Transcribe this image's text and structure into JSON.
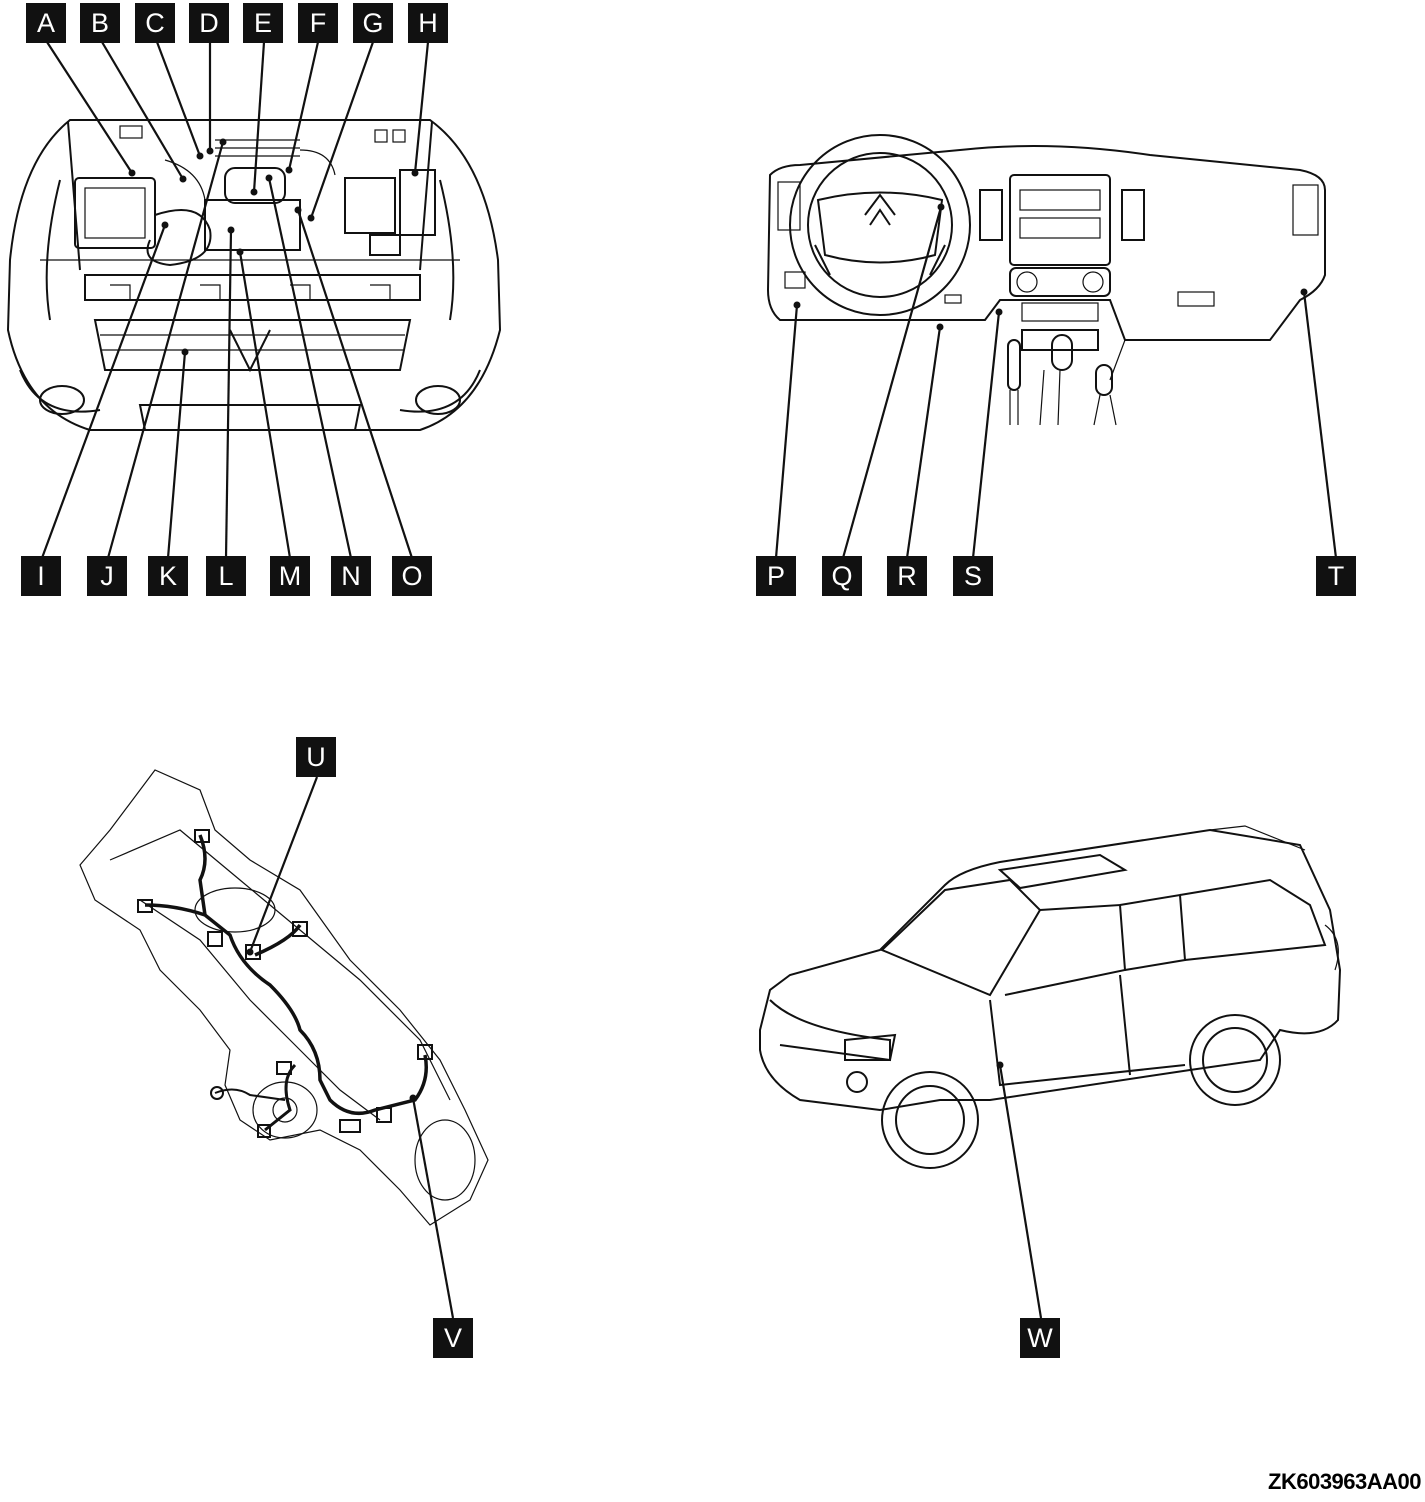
{
  "diagram": {
    "callouts": [
      "A",
      "B",
      "C",
      "D",
      "E",
      "F",
      "G",
      "H",
      "I",
      "J",
      "K",
      "L",
      "M",
      "N",
      "O",
      "P",
      "Q",
      "R",
      "S",
      "T",
      "U",
      "V",
      "W"
    ],
    "figure_code": "ZK603963AA00"
  }
}
